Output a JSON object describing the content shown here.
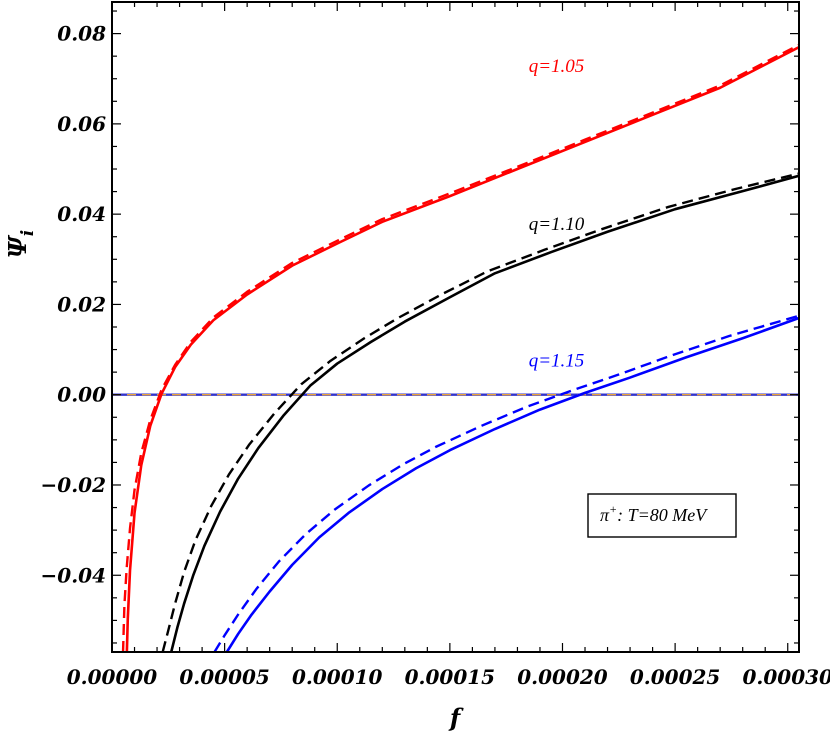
{
  "chart_data": {
    "type": "line",
    "title": "",
    "xlabel": "f",
    "ylabel": "Ψ",
    "ylabel_sub": "i",
    "xlim": [
      0.0,
      0.000305
    ],
    "ylim": [
      -0.057,
      0.087
    ],
    "x_ticks": [
      0.0,
      5e-05,
      0.0001,
      0.00015,
      0.0002,
      0.00025,
      0.0003
    ],
    "x_tick_labels": [
      "0.00000",
      "0.00005",
      "0.00010",
      "0.00015",
      "0.00020",
      "0.00025",
      "0.00030"
    ],
    "y_ticks": [
      -0.04,
      -0.02,
      0.0,
      0.02,
      0.04,
      0.06,
      0.08
    ],
    "y_tick_labels": [
      "−0.04",
      "−0.02",
      "0.00",
      "0.02",
      "0.04",
      "0.06",
      "0.08"
    ],
    "annotation": {
      "particle": "π",
      "particle_sup": "+",
      "text": ": T=80 MeV",
      "placement": "bottom-right"
    },
    "reference_line": {
      "y": 0.0,
      "color": "#3333cc",
      "dash_color": "#e8a33a"
    },
    "series": [
      {
        "label": "q=1.05",
        "color": "#ff0000",
        "solid": {
          "x": [
            6.6e-06,
            7e-06,
            8e-06,
            1e-05,
            1.3e-05,
            1.7e-05,
            2.2e-05,
            2.8e-05,
            3.5e-05,
            4.5e-05,
            6e-05,
            8e-05,
            0.0001,
            0.00012,
            0.00015,
            0.00018,
            0.00021,
            0.00024,
            0.00027,
            0.000305
          ],
          "y": [
            -0.057,
            -0.0497,
            -0.0389,
            -0.0262,
            -0.0156,
            -0.0069,
            0.0002,
            0.0061,
            0.0111,
            0.0165,
            0.0222,
            0.0286,
            0.0335,
            0.0383,
            0.044,
            0.05,
            0.056,
            0.062,
            0.068,
            0.077
          ]
        },
        "dashed": {
          "x": [
            4.9e-06,
            5.5e-06,
            6.5e-06,
            8e-06,
            1e-05,
            1.3e-05,
            1.7e-05,
            2.2e-05,
            2.8e-05,
            3.5e-05,
            4.5e-05,
            6e-05,
            8e-05,
            0.0001,
            0.00012,
            0.00015,
            0.00018,
            0.00021,
            0.00024,
            0.00027,
            0.000305
          ],
          "y": [
            -0.057,
            -0.0467,
            -0.0385,
            -0.0296,
            -0.0211,
            -0.0129,
            -0.0056,
            0.0011,
            0.0066,
            0.0117,
            0.0171,
            0.0228,
            0.0292,
            0.0341,
            0.0389,
            0.0446,
            0.0505,
            0.0565,
            0.0625,
            0.0685,
            0.0775
          ]
        }
      },
      {
        "label": "q=1.10",
        "color": "#000000",
        "solid": {
          "x": [
            2.63e-05,
            2.9e-05,
            3.2e-05,
            3.6e-05,
            4.1e-05,
            4.8e-05,
            5.6e-05,
            6.5e-05,
            7.6e-05,
            8.8e-05,
            0.0001,
            0.000115,
            0.00013,
            0.00015,
            0.00017,
            0.000195,
            0.00022,
            0.00025,
            0.00028,
            0.000305
          ],
          "y": [
            -0.057,
            -0.0516,
            -0.0463,
            -0.0401,
            -0.0335,
            -0.0259,
            -0.0186,
            -0.0118,
            -0.0047,
            0.002,
            0.0069,
            0.0117,
            0.0162,
            0.0216,
            0.0269,
            0.0316,
            0.0361,
            0.0411,
            0.0451,
            0.0485
          ]
        },
        "dashed": {
          "x": [
            2.25e-05,
            2.5e-05,
            2.8e-05,
            3.2e-05,
            3.7e-05,
            4.4e-05,
            5.2e-05,
            6.1e-05,
            7.2e-05,
            8.4e-05,
            9.7e-05,
            0.000112,
            0.000127,
            0.000147,
            0.000167,
            0.000192,
            0.000217,
            0.000247,
            0.000277,
            0.000305
          ],
          "y": [
            -0.057,
            -0.0522,
            -0.0463,
            -0.0393,
            -0.0323,
            -0.0247,
            -0.0176,
            -0.011,
            -0.0042,
            0.0023,
            0.0075,
            0.0125,
            0.017,
            0.0224,
            0.0274,
            0.0321,
            0.0366,
            0.0416,
            0.0456,
            0.049
          ]
        }
      },
      {
        "label": "q=1.15",
        "color": "#0000ff",
        "solid": {
          "x": [
            5.1e-05,
            5.6e-05,
            6.2e-05,
            7e-05,
            8e-05,
            9.2e-05,
            0.000105,
            0.00012,
            0.000135,
            0.00015,
            0.00017,
            0.00019,
            0.00021,
            0.00023,
            0.000255,
            0.00028,
            0.000305
          ],
          "y": [
            -0.057,
            -0.053,
            -0.0487,
            -0.0436,
            -0.0377,
            -0.0316,
            -0.0262,
            -0.0209,
            -0.0163,
            -0.0123,
            -0.0076,
            -0.0033,
            0.0004,
            0.0038,
            0.0083,
            0.0125,
            0.017
          ]
        },
        "dashed": {
          "x": [
            4.55e-05,
            5e-05,
            5.6e-05,
            6.4e-05,
            7.4e-05,
            8.6e-05,
            9.9e-05,
            0.000114,
            0.000129,
            0.000144,
            0.000164,
            0.000184,
            0.000204,
            0.000224,
            0.000249,
            0.000274,
            0.000305
          ],
          "y": [
            -0.057,
            -0.0533,
            -0.0487,
            -0.0431,
            -0.037,
            -0.0309,
            -0.0254,
            -0.0201,
            -0.0155,
            -0.0115,
            -0.0069,
            -0.0027,
            0.0009,
            0.0043,
            0.0088,
            0.013,
            0.0175
          ]
        }
      }
    ],
    "series_label_positions": [
      {
        "x": 0.000185,
        "y": 0.0715
      },
      {
        "x": 0.000185,
        "y": 0.0365
      },
      {
        "x": 0.000185,
        "y": 0.0063
      }
    ]
  }
}
